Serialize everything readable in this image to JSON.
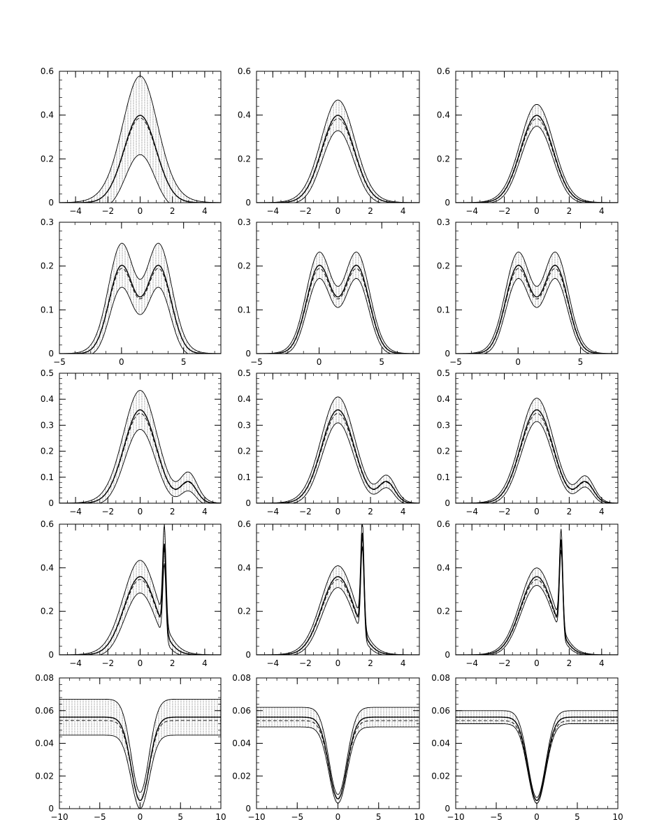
{
  "chart_data": [
    {
      "type": "line",
      "row": 0,
      "col": 0,
      "xlim": [
        -5,
        5
      ],
      "ylim": [
        0,
        0.6
      ],
      "xticks": [
        -4,
        -2,
        0,
        2,
        4
      ],
      "yticks": [
        0,
        0.2,
        0.4,
        0.6
      ],
      "xticklabels": [
        "−4",
        "−2",
        "0",
        "2",
        "4"
      ],
      "yticklabels": [
        "0",
        "0.2",
        "0.4",
        "0.6"
      ],
      "curve": "gaussian",
      "center_value": 0.4,
      "band_halfwidth": 0.18,
      "band": "wide"
    },
    {
      "type": "line",
      "row": 0,
      "col": 1,
      "xlim": [
        -5,
        5
      ],
      "ylim": [
        0,
        0.6
      ],
      "xticks": [
        -4,
        -2,
        0,
        2,
        4
      ],
      "yticks": [
        0,
        0.2,
        0.4,
        0.6
      ],
      "xticklabels": [
        "−4",
        "−2",
        "0",
        "2",
        "4"
      ],
      "yticklabels": [
        "0",
        "0.2",
        "0.4",
        "0.6"
      ],
      "curve": "gaussian",
      "center_value": 0.4,
      "band_halfwidth": 0.07,
      "band": "medium"
    },
    {
      "type": "line",
      "row": 0,
      "col": 2,
      "xlim": [
        -5,
        5
      ],
      "ylim": [
        0,
        0.6
      ],
      "xticks": [
        -4,
        -2,
        0,
        2,
        4
      ],
      "yticks": [
        0,
        0.2,
        0.4,
        0.6
      ],
      "xticklabels": [
        "−4",
        "−2",
        "0",
        "2",
        "4"
      ],
      "yticklabels": [
        "0",
        "0.2",
        "0.4",
        "0.6"
      ],
      "curve": "gaussian",
      "center_value": 0.4,
      "band_halfwidth": 0.05,
      "band": "narrow"
    },
    {
      "type": "line",
      "row": 1,
      "col": 0,
      "xlim": [
        -5,
        8
      ],
      "ylim": [
        0,
        0.3
      ],
      "xticks": [
        -5,
        0,
        5
      ],
      "yticks": [
        0,
        0.1,
        0.2,
        0.3
      ],
      "xticklabels": [
        "−5",
        "0",
        "5"
      ],
      "yticklabels": [
        "0",
        "0.1",
        "0.2",
        "0.3"
      ],
      "curve": "bimodal",
      "peaks": [
        0,
        3
      ],
      "peak_value": 0.2,
      "band_halfwidth": 0.05,
      "band": "wide"
    },
    {
      "type": "line",
      "row": 1,
      "col": 1,
      "xlim": [
        -5,
        8
      ],
      "ylim": [
        0,
        0.3
      ],
      "xticks": [
        -5,
        0,
        5
      ],
      "yticks": [
        0,
        0.1,
        0.2,
        0.3
      ],
      "xticklabels": [
        "−5",
        "0",
        "5"
      ],
      "yticklabels": [
        "0",
        "0.1",
        "0.2",
        "0.3"
      ],
      "curve": "bimodal",
      "peaks": [
        0,
        3
      ],
      "peak_value": 0.2,
      "band_halfwidth": 0.03,
      "band": "medium"
    },
    {
      "type": "line",
      "row": 1,
      "col": 2,
      "xlim": [
        -5,
        8
      ],
      "ylim": [
        0,
        0.3
      ],
      "xticks": [
        -5,
        0,
        5
      ],
      "yticks": [
        0,
        0.1,
        0.2,
        0.3
      ],
      "xticklabels": [
        "−5",
        "0",
        "5"
      ],
      "yticklabels": [
        "0",
        "0.1",
        "0.2",
        "0.3"
      ],
      "curve": "bimodal",
      "peaks": [
        0,
        3
      ],
      "peak_value": 0.2,
      "band_halfwidth": 0.03,
      "band": "narrow"
    },
    {
      "type": "line",
      "row": 2,
      "col": 0,
      "xlim": [
        -5,
        5
      ],
      "ylim": [
        0,
        0.5
      ],
      "xticks": [
        -4,
        -2,
        0,
        2,
        4
      ],
      "yticks": [
        0,
        0.1,
        0.2,
        0.3,
        0.4,
        0.5
      ],
      "xticklabels": [
        "−4",
        "−2",
        "0",
        "2",
        "4"
      ],
      "yticklabels": [
        "0",
        "0.1",
        "0.2",
        "0.3",
        "0.4",
        "0.5"
      ],
      "curve": "skewed-mixture",
      "main_peak": 0.36,
      "secondary_peak": [
        3,
        0.08
      ],
      "band_halfwidth": 0.075,
      "band": "wide"
    },
    {
      "type": "line",
      "row": 2,
      "col": 1,
      "xlim": [
        -5,
        5
      ],
      "ylim": [
        0,
        0.5
      ],
      "xticks": [
        -4,
        -2,
        0,
        2,
        4
      ],
      "yticks": [
        0,
        0.1,
        0.2,
        0.3,
        0.4,
        0.5
      ],
      "xticklabels": [
        "−4",
        "−2",
        "0",
        "2",
        "4"
      ],
      "yticklabels": [
        "0",
        "0.1",
        "0.2",
        "0.3",
        "0.4",
        "0.5"
      ],
      "curve": "skewed-mixture",
      "main_peak": 0.36,
      "secondary_peak": [
        3,
        0.08
      ],
      "band_halfwidth": 0.05,
      "band": "medium"
    },
    {
      "type": "line",
      "row": 2,
      "col": 2,
      "xlim": [
        -5,
        5
      ],
      "ylim": [
        0,
        0.5
      ],
      "xticks": [
        -4,
        -2,
        0,
        2,
        4
      ],
      "yticks": [
        0,
        0.1,
        0.2,
        0.3,
        0.4,
        0.5
      ],
      "xticklabels": [
        "−4",
        "−2",
        "0",
        "2",
        "4"
      ],
      "yticklabels": [
        "0",
        "0.1",
        "0.2",
        "0.3",
        "0.4",
        "0.5"
      ],
      "curve": "skewed-mixture",
      "main_peak": 0.36,
      "secondary_peak": [
        3,
        0.08
      ],
      "band_halfwidth": 0.045,
      "band": "narrow"
    },
    {
      "type": "line",
      "row": 3,
      "col": 0,
      "xlim": [
        -5,
        5
      ],
      "ylim": [
        0,
        0.6
      ],
      "xticks": [
        -4,
        -2,
        0,
        2,
        4
      ],
      "yticks": [
        0,
        0.2,
        0.4,
        0.6
      ],
      "xticklabels": [
        "−4",
        "−2",
        "0",
        "2",
        "4"
      ],
      "yticklabels": [
        "0",
        "0.2",
        "0.4",
        "0.6"
      ],
      "curve": "spike-mixture",
      "main_peak": 0.36,
      "spike": [
        1.5,
        0.51
      ],
      "band_halfwidth": 0.075,
      "band": "wide"
    },
    {
      "type": "line",
      "row": 3,
      "col": 1,
      "xlim": [
        -5,
        5
      ],
      "ylim": [
        0,
        0.6
      ],
      "xticks": [
        -4,
        -2,
        0,
        2,
        4
      ],
      "yticks": [
        0,
        0.2,
        0.4,
        0.6
      ],
      "xticklabels": [
        "−4",
        "−2",
        "0",
        "2",
        "4"
      ],
      "yticklabels": [
        "0",
        "0.2",
        "0.4",
        "0.6"
      ],
      "curve": "spike-mixture",
      "main_peak": 0.36,
      "spike": [
        1.5,
        0.56
      ],
      "band_halfwidth": 0.05,
      "band": "medium"
    },
    {
      "type": "line",
      "row": 3,
      "col": 2,
      "xlim": [
        -5,
        5
      ],
      "ylim": [
        0,
        0.6
      ],
      "xticks": [
        -4,
        -2,
        0,
        2,
        4
      ],
      "yticks": [
        0,
        0.2,
        0.4,
        0.6
      ],
      "xticklabels": [
        "−4",
        "−2",
        "0",
        "2",
        "4"
      ],
      "yticklabels": [
        "0",
        "0.2",
        "0.4",
        "0.6"
      ],
      "curve": "spike-mixture",
      "main_peak": 0.36,
      "spike": [
        1.5,
        0.53
      ],
      "band_halfwidth": 0.04,
      "band": "narrow"
    },
    {
      "type": "line",
      "row": 4,
      "col": 0,
      "xlim": [
        -10,
        10
      ],
      "ylim": [
        0,
        0.08
      ],
      "xticks": [
        -10,
        -5,
        0,
        5,
        10
      ],
      "yticks": [
        0,
        0.02,
        0.04,
        0.06,
        0.08
      ],
      "xticklabels": [
        "−10",
        "−5",
        "0",
        "5",
        "10"
      ],
      "yticklabels": [
        "0",
        "0.02",
        "0.04",
        "0.06",
        "0.08"
      ],
      "curve": "dip",
      "plateau": 0.056,
      "dip_min": 0.005,
      "band_halfwidth": 0.011,
      "band": "wide"
    },
    {
      "type": "line",
      "row": 4,
      "col": 1,
      "xlim": [
        -10,
        10
      ],
      "ylim": [
        0,
        0.08
      ],
      "xticks": [
        -10,
        -5,
        0,
        5,
        10
      ],
      "yticks": [
        0,
        0.02,
        0.04,
        0.06,
        0.08
      ],
      "xticklabels": [
        "−10",
        "−5",
        "0",
        "5",
        "10"
      ],
      "yticklabels": [
        "0",
        "0.02",
        "0.04",
        "0.06",
        "0.08"
      ],
      "curve": "dip",
      "plateau": 0.056,
      "dip_min": 0.006,
      "band_halfwidth": 0.006,
      "band": "medium"
    },
    {
      "type": "line",
      "row": 4,
      "col": 2,
      "xlim": [
        -10,
        10
      ],
      "ylim": [
        0,
        0.08
      ],
      "xticks": [
        -10,
        -5,
        0,
        5,
        10
      ],
      "yticks": [
        0,
        0.02,
        0.04,
        0.06,
        0.08
      ],
      "xticklabels": [
        "−10",
        "−5",
        "0",
        "5",
        "10"
      ],
      "yticklabels": [
        "0",
        "0.02",
        "0.04",
        "0.06",
        "0.08"
      ],
      "curve": "dip",
      "plateau": 0.056,
      "dip_min": 0.005,
      "band_halfwidth": 0.004,
      "band": "narrow"
    }
  ]
}
